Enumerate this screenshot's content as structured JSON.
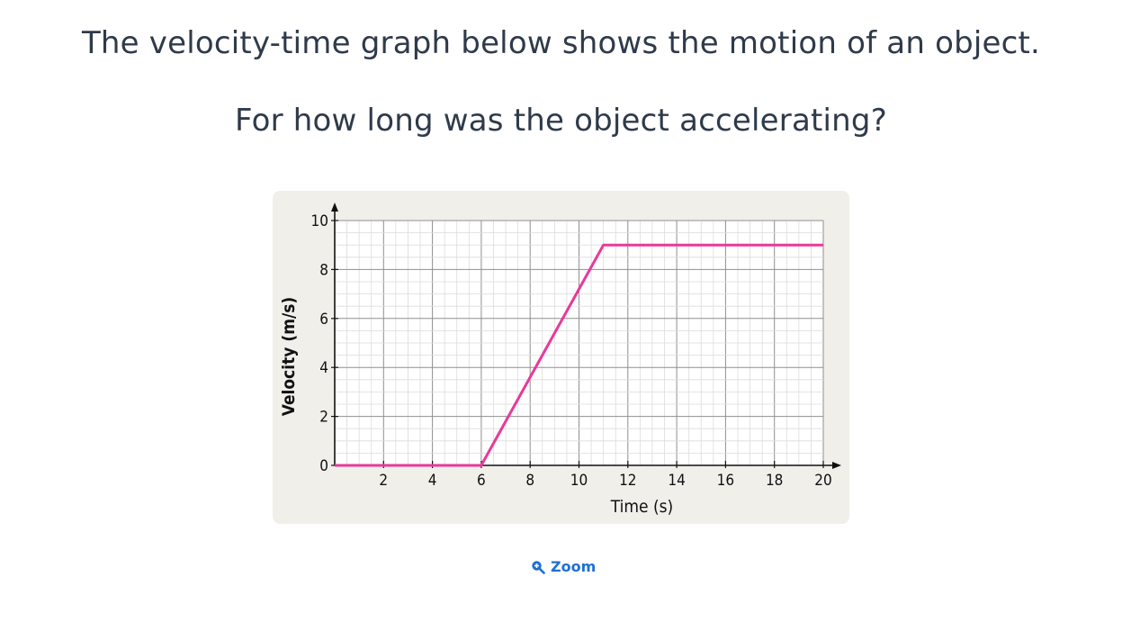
{
  "question": {
    "line1": "The velocity-time graph below shows the motion of an object.",
    "line2": "For how long was the object accelerating?"
  },
  "zoom": {
    "label": "Zoom",
    "icon": "zoom-in-icon"
  },
  "chart_data": {
    "type": "line",
    "xlabel": "Time (s)",
    "ylabel": "Velocity (m/s)",
    "xlim": [
      0,
      20
    ],
    "ylim": [
      0,
      10
    ],
    "x_ticks": [
      2,
      4,
      6,
      8,
      10,
      12,
      14,
      16,
      18,
      20
    ],
    "y_ticks": [
      0,
      2,
      4,
      6,
      8,
      10
    ],
    "grid": true,
    "series": [
      {
        "color": "#e8399a",
        "points": [
          [
            0,
            0
          ],
          [
            6,
            0
          ],
          [
            11,
            9
          ],
          [
            20,
            9
          ]
        ]
      }
    ]
  }
}
